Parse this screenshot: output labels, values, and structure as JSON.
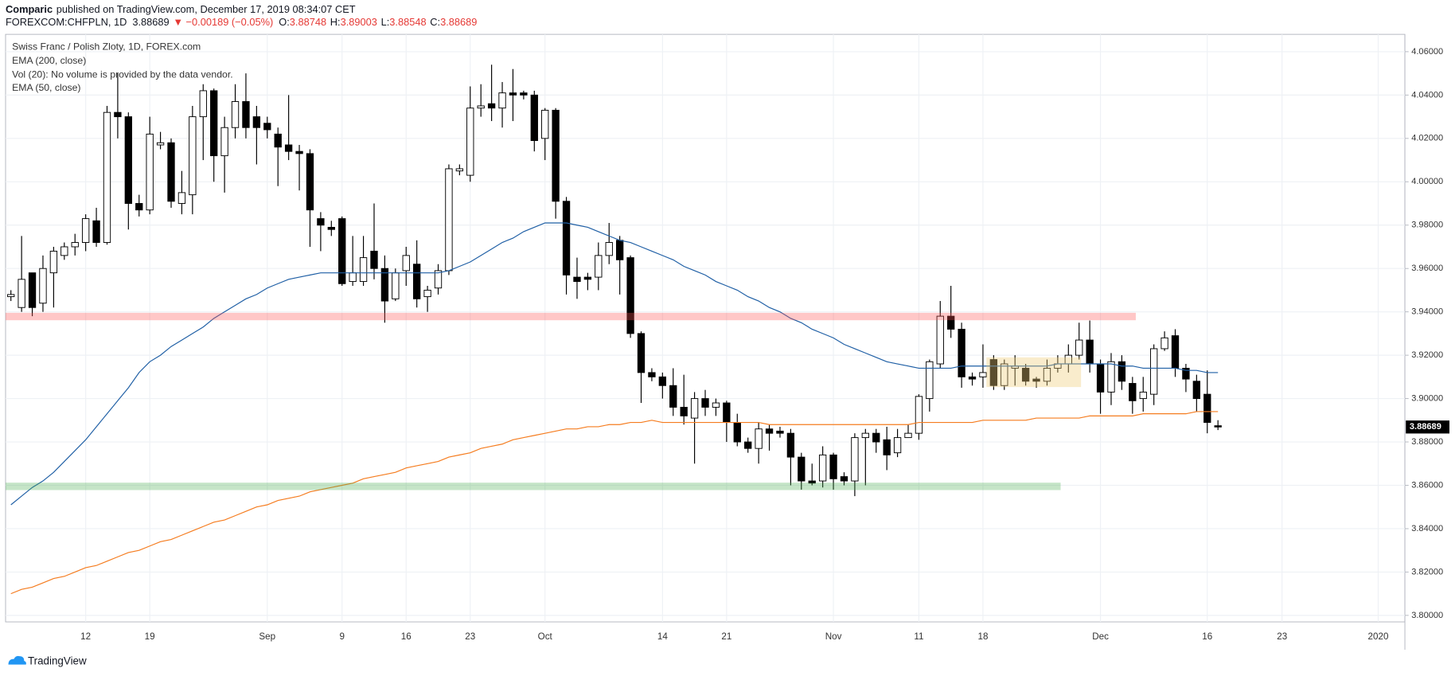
{
  "header": {
    "author": "Comparic",
    "published": "published on TradingView.com, December 17, 2019 08:34:07 CET",
    "symbol": "FOREXCOM:CHFPLN, 1D",
    "last": "3.88689",
    "change": "▼ −0.00189 (−0.05%)",
    "ohlc": [
      {
        "label": "O:",
        "value": "3.88748"
      },
      {
        "label": "H:",
        "value": "3.89003"
      },
      {
        "label": "L:",
        "value": "3.88548"
      },
      {
        "label": "C:",
        "value": "3.88689"
      }
    ]
  },
  "chart_data": {
    "type": "candlestick",
    "title": "Swiss Franc / Polish Zloty, 1D, FOREX.com",
    "legend_notes": [
      "Vol (20): No volume is provided by the data vendor."
    ],
    "up_color": "#ffffff",
    "down_color": "#000000",
    "categories": [
      null,
      null,
      null,
      null,
      null,
      null,
      null,
      "12",
      null,
      null,
      null,
      null,
      null,
      "19",
      null,
      null,
      null,
      null,
      null,
      null,
      null,
      null,
      null,
      null,
      "Sep",
      null,
      null,
      null,
      null,
      null,
      null,
      "9",
      null,
      null,
      null,
      null,
      null,
      "16",
      null,
      null,
      null,
      null,
      null,
      "23",
      null,
      null,
      null,
      null,
      null,
      null,
      "Oct",
      null,
      null,
      null,
      null,
      null,
      null,
      null,
      null,
      null,
      null,
      "14",
      null,
      null,
      null,
      null,
      null,
      "21",
      null,
      null,
      null,
      null,
      null,
      null,
      null,
      null,
      null,
      "Nov",
      null,
      null,
      null,
      null,
      null,
      null,
      null,
      "11",
      null,
      null,
      null,
      null,
      null,
      "18",
      null,
      null,
      null,
      null,
      null,
      null,
      null,
      null,
      null,
      null,
      "Dec",
      null,
      null,
      null,
      null,
      null,
      null,
      null,
      null,
      null,
      "16",
      null,
      null,
      null,
      null,
      null,
      null,
      "23",
      null,
      null,
      null,
      null,
      null,
      null,
      null,
      null,
      "2020",
      null,
      null
    ],
    "open": [
      3.947,
      3.942,
      3.958,
      3.944,
      3.958,
      3.966,
      3.97,
      3.972,
      3.982,
      3.972,
      4.032,
      4.03,
      3.99,
      3.987,
      4.017,
      4.018,
      3.99,
      3.994,
      4.03,
      4.042,
      4.012,
      4.025,
      4.037,
      4.03,
      4.027,
      4.022,
      4.017,
      4.014,
      4.013,
      3.983,
      3.979,
      3.983,
      3.954,
      3.954,
      3.968,
      3.96,
      3.946,
      3.959,
      3.962,
      3.947,
      3.951,
      3.959,
      4.005,
      4.003,
      4.034,
      4.036,
      4.034,
      4.041,
      4.041,
      4.04,
      4.02,
      4.033,
      3.991,
      3.956,
      3.956,
      3.956,
      3.966,
      3.973,
      3.965,
      3.93,
      3.912,
      3.91,
      3.906,
      3.896,
      3.891,
      3.9,
      3.896,
      3.898,
      3.889,
      3.88,
      3.877,
      3.886,
      3.885,
      3.884,
      3.873,
      3.862,
      3.862,
      3.874,
      3.864,
      3.862,
      3.882,
      3.884,
      3.881,
      3.875,
      3.882,
      3.884,
      3.9,
      3.916,
      3.938,
      3.932,
      3.91,
      3.91,
      3.918,
      3.906,
      3.914,
      3.914,
      3.909,
      3.908,
      3.914,
      3.916,
      3.92,
      3.927,
      3.916,
      3.903,
      3.917,
      3.907,
      3.9,
      3.902,
      3.923,
      3.929,
      3.914,
      3.908,
      3.902,
      3.88748,
      null,
      null,
      null,
      null,
      null,
      null,
      null,
      null,
      null,
      null,
      null,
      null,
      null,
      null,
      null,
      null,
      null
    ],
    "high": [
      3.95,
      3.975,
      3.958,
      3.966,
      3.97,
      3.972,
      3.976,
      3.985,
      3.988,
      4.035,
      4.05,
      4.032,
      3.994,
      4.03,
      4.023,
      4.02,
      4.005,
      4.035,
      4.045,
      4.043,
      4.03,
      4.045,
      4.05,
      4.035,
      4.03,
      4.025,
      4.04,
      4.017,
      4.015,
      3.986,
      3.982,
      3.984,
      3.975,
      3.975,
      3.99,
      3.966,
      3.96,
      3.97,
      3.973,
      3.952,
      3.962,
      4.008,
      4.008,
      4.044,
      4.045,
      4.054,
      4.046,
      4.052,
      4.042,
      4.042,
      4.034,
      4.034,
      3.993,
      3.965,
      3.958,
      3.972,
      3.981,
      3.975,
      3.966,
      3.931,
      3.914,
      3.912,
      3.914,
      3.911,
      3.903,
      3.904,
      3.9,
      3.899,
      3.893,
      3.882,
      3.889,
      3.888,
      3.887,
      3.886,
      3.875,
      3.87,
      3.878,
      3.875,
      3.866,
      3.884,
      3.886,
      3.886,
      3.887,
      3.886,
      3.888,
      3.902,
      3.918,
      3.945,
      3.952,
      3.935,
      3.912,
      3.925,
      3.92,
      3.918,
      3.92,
      3.916,
      3.91,
      3.918,
      3.92,
      3.925,
      3.935,
      3.936,
      3.918,
      3.921,
      3.92,
      3.91,
      3.91,
      3.925,
      3.931,
      3.932,
      3.916,
      3.911,
      3.913,
      3.89003,
      null,
      null,
      null,
      null,
      null,
      null,
      null,
      null,
      null,
      null,
      null,
      null,
      null,
      null,
      null,
      null,
      null
    ],
    "low": [
      3.945,
      3.94,
      3.938,
      3.94,
      3.942,
      3.964,
      3.966,
      3.968,
      3.97,
      3.971,
      4.02,
      3.978,
      3.984,
      3.985,
      4.015,
      3.988,
      3.985,
      3.985,
      4.01,
      4.0,
      3.995,
      4.02,
      4.02,
      4.008,
      4.02,
      3.998,
      4.01,
      3.996,
      3.97,
      3.968,
      3.975,
      3.952,
      3.952,
      3.952,
      3.955,
      3.935,
      3.945,
      3.952,
      3.942,
      3.94,
      3.948,
      3.957,
      4.003,
      4.0,
      4.03,
      4.028,
      4.025,
      4.028,
      4.038,
      4.014,
      4.01,
      3.983,
      3.948,
      3.946,
      3.95,
      3.95,
      3.962,
      3.948,
      3.928,
      3.898,
      3.908,
      3.9,
      3.892,
      3.888,
      3.87,
      3.892,
      3.892,
      3.88,
      3.878,
      3.875,
      3.87,
      3.876,
      3.882,
      3.86,
      3.858,
      3.86,
      3.859,
      3.858,
      3.86,
      3.855,
      3.86,
      3.875,
      3.867,
      3.873,
      3.882,
      3.881,
      3.894,
      3.914,
      3.928,
      3.905,
      3.906,
      3.905,
      3.904,
      3.904,
      3.906,
      3.906,
      3.905,
      3.906,
      3.912,
      3.912,
      3.918,
      3.912,
      3.893,
      3.897,
      3.904,
      3.893,
      3.894,
      3.897,
      3.922,
      3.91,
      3.903,
      3.894,
      3.884,
      3.88548,
      null,
      null,
      null,
      null,
      null,
      null,
      null,
      null,
      null,
      null,
      null,
      null,
      null,
      null,
      null,
      null,
      null
    ],
    "close": [
      3.948,
      3.955,
      3.942,
      3.96,
      3.968,
      3.97,
      3.972,
      3.983,
      3.972,
      4.032,
      4.03,
      3.99,
      3.987,
      4.022,
      4.018,
      3.991,
      3.995,
      4.03,
      4.042,
      4.012,
      4.025,
      4.037,
      4.025,
      4.025,
      4.024,
      4.016,
      4.014,
      4.013,
      3.987,
      3.98,
      3.978,
      3.953,
      3.958,
      3.965,
      3.96,
      3.945,
      3.958,
      3.966,
      3.946,
      3.95,
      3.959,
      4.006,
      4.006,
      4.034,
      4.035,
      4.034,
      4.041,
      4.04,
      4.04,
      4.019,
      4.033,
      3.991,
      3.957,
      3.954,
      3.955,
      3.966,
      3.972,
      3.964,
      3.93,
      3.912,
      3.91,
      3.906,
      3.896,
      3.892,
      3.9,
      3.896,
      3.898,
      3.889,
      3.88,
      3.877,
      3.886,
      3.884,
      3.884,
      3.873,
      3.862,
      3.861,
      3.874,
      3.863,
      3.862,
      3.882,
      3.884,
      3.88,
      3.874,
      3.882,
      3.884,
      3.901,
      3.917,
      3.938,
      3.932,
      3.91,
      3.909,
      3.912,
      3.906,
      3.916,
      3.915,
      3.908,
      3.908,
      3.914,
      3.916,
      3.92,
      3.927,
      3.916,
      3.903,
      3.917,
      3.908,
      3.899,
      3.903,
      3.923,
      3.928,
      3.914,
      3.909,
      3.9,
      3.889,
      3.88689,
      null,
      null,
      null,
      null,
      null,
      null,
      null,
      null,
      null,
      null,
      null,
      null,
      null,
      null,
      null,
      null,
      null
    ],
    "series": [
      {
        "name": "EMA (200, close)",
        "color": "#f57c1f",
        "values": [
          3.81,
          3.812,
          3.813,
          3.815,
          3.817,
          3.818,
          3.82,
          3.822,
          3.823,
          3.825,
          3.827,
          3.829,
          3.83,
          3.832,
          3.834,
          3.835,
          3.837,
          3.839,
          3.841,
          3.843,
          3.844,
          3.846,
          3.848,
          3.85,
          3.851,
          3.853,
          3.854,
          3.855,
          3.857,
          3.858,
          3.859,
          3.86,
          3.861,
          3.863,
          3.864,
          3.865,
          3.866,
          3.868,
          3.869,
          3.87,
          3.871,
          3.873,
          3.874,
          3.875,
          3.877,
          3.878,
          3.879,
          3.881,
          3.882,
          3.883,
          3.884,
          3.885,
          3.886,
          3.886,
          3.887,
          3.887,
          3.888,
          3.888,
          3.889,
          3.889,
          3.89,
          3.889,
          3.889,
          3.889,
          3.889,
          3.889,
          3.889,
          3.889,
          3.889,
          3.889,
          3.889,
          3.888,
          3.888,
          3.888,
          3.888,
          3.888,
          3.888,
          3.888,
          3.888,
          3.888,
          3.888,
          3.888,
          3.888,
          3.888,
          3.888,
          3.889,
          3.889,
          3.889,
          3.889,
          3.889,
          3.889,
          3.89,
          3.89,
          3.89,
          3.89,
          3.89,
          3.891,
          3.891,
          3.891,
          3.891,
          3.891,
          3.892,
          3.892,
          3.892,
          3.892,
          3.892,
          3.893,
          3.893,
          3.893,
          3.893,
          3.893,
          3.894,
          3.894,
          3.894,
          null,
          null,
          null,
          null,
          null,
          null,
          null,
          null,
          null,
          null,
          null,
          null,
          null,
          null,
          null,
          null,
          null
        ]
      },
      {
        "name": "EMA (50, close)",
        "color": "#1f5fa5",
        "values": [
          3.851,
          3.855,
          3.859,
          3.862,
          3.866,
          3.871,
          3.876,
          3.881,
          3.887,
          3.893,
          3.899,
          3.905,
          3.912,
          3.917,
          3.92,
          3.924,
          3.927,
          3.93,
          3.933,
          3.937,
          3.94,
          3.943,
          3.946,
          3.948,
          3.951,
          3.953,
          3.955,
          3.956,
          3.957,
          3.958,
          3.958,
          3.958,
          3.958,
          3.958,
          3.958,
          3.958,
          3.958,
          3.958,
          3.958,
          3.958,
          3.958,
          3.959,
          3.961,
          3.963,
          3.966,
          3.969,
          3.972,
          3.974,
          3.977,
          3.979,
          3.981,
          3.981,
          3.981,
          3.98,
          3.979,
          3.977,
          3.975,
          3.973,
          3.972,
          3.97,
          3.968,
          3.966,
          3.964,
          3.961,
          3.959,
          3.957,
          3.954,
          3.952,
          3.95,
          3.947,
          3.945,
          3.942,
          3.94,
          3.937,
          3.935,
          3.932,
          3.93,
          3.928,
          3.925,
          3.923,
          3.921,
          3.919,
          3.917,
          3.916,
          3.915,
          3.914,
          3.914,
          3.914,
          3.914,
          3.915,
          3.915,
          3.915,
          3.915,
          3.915,
          3.915,
          3.915,
          3.915,
          3.915,
          3.916,
          3.916,
          3.916,
          3.916,
          3.916,
          3.916,
          3.915,
          3.915,
          3.914,
          3.914,
          3.914,
          3.914,
          3.913,
          3.913,
          3.912,
          3.912,
          null,
          null,
          null,
          null,
          null,
          null,
          null,
          null,
          null,
          null,
          null,
          null,
          null,
          null,
          null,
          null,
          null
        ]
      }
    ],
    "ylim": [
      3.797,
      4.068
    ],
    "yticks": [
      {
        "value": 3.8,
        "label": "3.80000"
      },
      {
        "value": 3.82,
        "label": "3.82000"
      },
      {
        "value": 3.84,
        "label": "3.84000"
      },
      {
        "value": 3.86,
        "label": "3.86000"
      },
      {
        "value": 3.88,
        "label": "3.88000"
      },
      {
        "value": 3.9,
        "label": "3.90000"
      },
      {
        "value": 3.92,
        "label": "3.92000"
      },
      {
        "value": 3.94,
        "label": "3.94000"
      },
      {
        "value": 3.96,
        "label": "3.96000"
      },
      {
        "value": 3.98,
        "label": "3.98000"
      },
      {
        "value": 4.0,
        "label": "4.00000"
      },
      {
        "value": 4.02,
        "label": "4.02000"
      },
      {
        "value": 4.04,
        "label": "4.04000"
      },
      {
        "value": 4.06,
        "label": "4.06000"
      }
    ],
    "grid": true
  },
  "footer": {
    "brand": "TradingView"
  }
}
